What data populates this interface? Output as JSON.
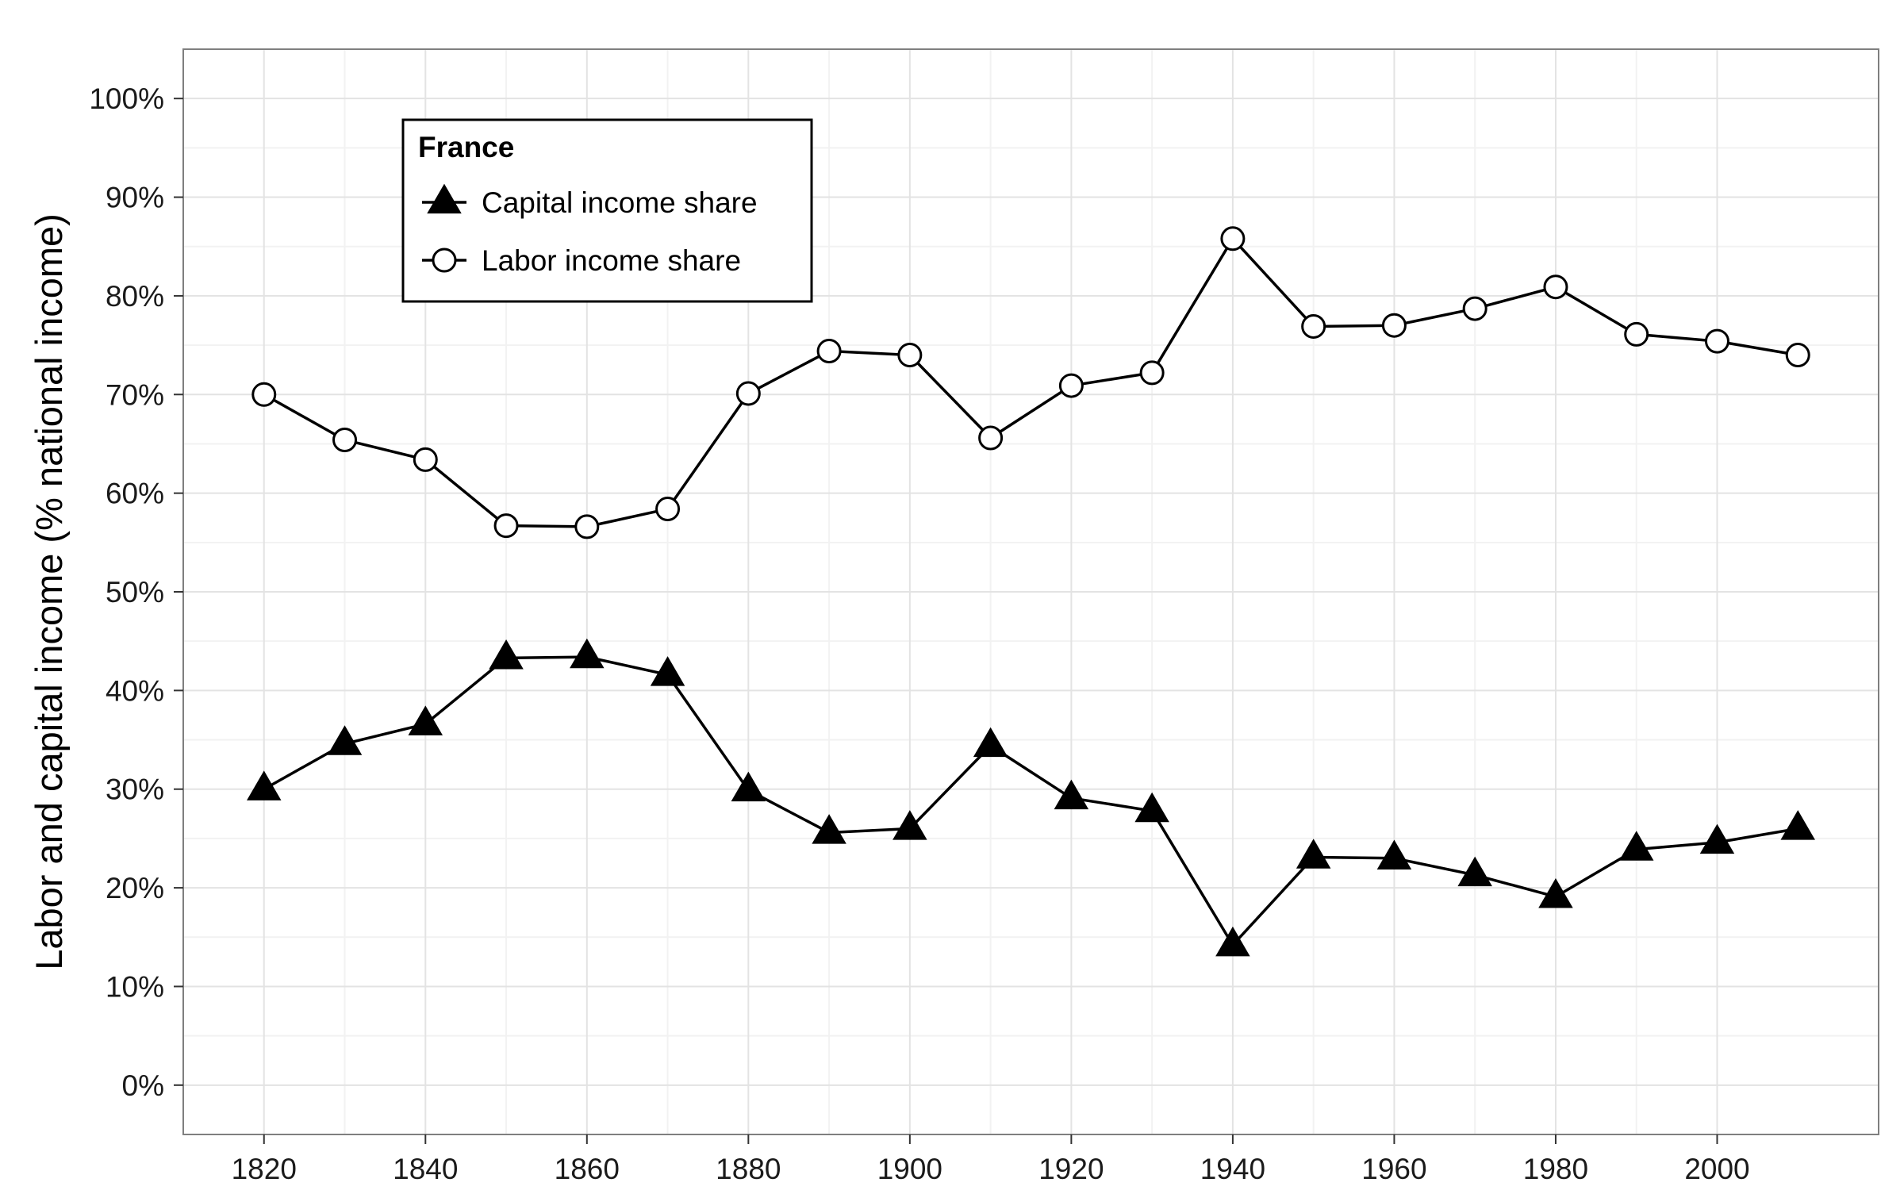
{
  "chart_data": {
    "type": "line",
    "title": "",
    "xlabel": "",
    "ylabel": "Labor and capital income (% national income)",
    "xlim": [
      1810,
      2020
    ],
    "ylim": [
      -5,
      105
    ],
    "x_ticks": [
      1820,
      1840,
      1860,
      1880,
      1900,
      1920,
      1940,
      1960,
      1980,
      2000
    ],
    "x_tick_labels": [
      "1820",
      "1840",
      "1860",
      "1880",
      "1900",
      "1920",
      "1940",
      "1960",
      "1980",
      "2000"
    ],
    "y_ticks": [
      0,
      10,
      20,
      30,
      40,
      50,
      60,
      70,
      80,
      90,
      100
    ],
    "y_tick_labels": [
      "0%",
      "10%",
      "20%",
      "30%",
      "40%",
      "50%",
      "60%",
      "70%",
      "80%",
      "90%",
      "100%"
    ],
    "grid": true,
    "legend": {
      "title": "France",
      "position": "top-left"
    },
    "x": [
      1820,
      1830,
      1840,
      1850,
      1860,
      1870,
      1880,
      1890,
      1900,
      1910,
      1920,
      1930,
      1940,
      1950,
      1960,
      1970,
      1980,
      1990,
      2000,
      2010
    ],
    "series": [
      {
        "name": "Capital income share",
        "marker": "filled-triangle",
        "color": "#000000",
        "values": [
          30.0,
          34.6,
          36.6,
          43.3,
          43.4,
          41.6,
          29.9,
          25.6,
          26.0,
          34.4,
          29.1,
          27.8,
          14.2,
          23.1,
          23.0,
          21.3,
          19.1,
          23.9,
          24.6,
          26.0
        ]
      },
      {
        "name": "Labor income share",
        "marker": "open-circle",
        "color": "#000000",
        "values": [
          70.0,
          65.4,
          63.4,
          56.7,
          56.6,
          58.4,
          70.1,
          74.4,
          74.0,
          65.6,
          70.9,
          72.2,
          85.8,
          76.9,
          77.0,
          78.7,
          80.9,
          76.1,
          75.4,
          74.0
        ]
      }
    ]
  }
}
